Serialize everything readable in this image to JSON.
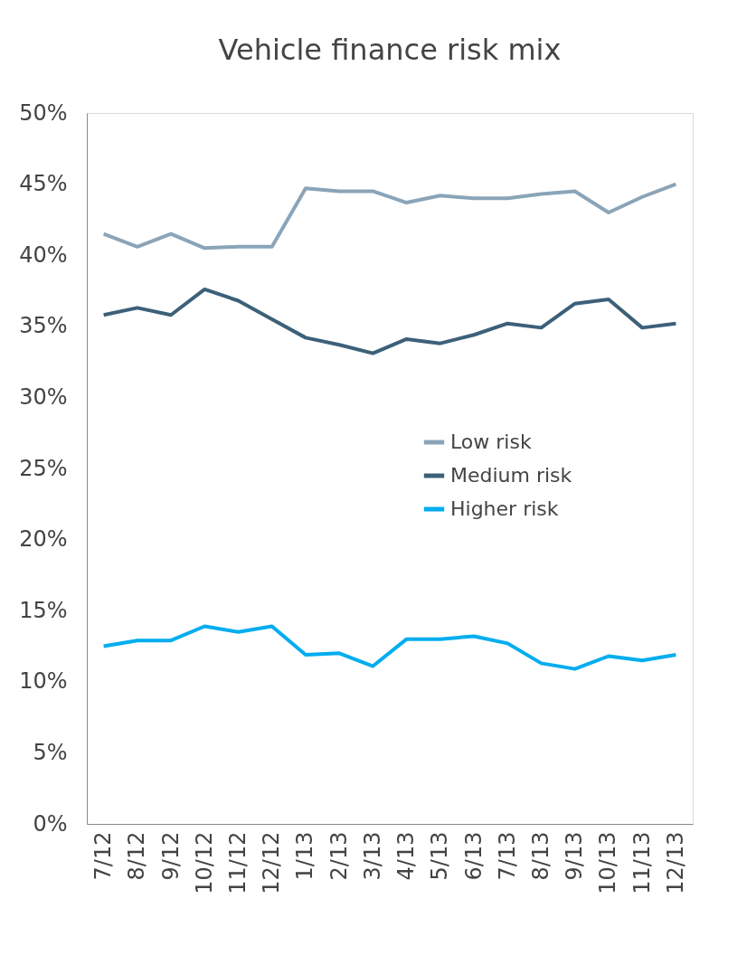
{
  "chart_data": {
    "type": "line",
    "title": "Vehicle finance risk mix",
    "categories": [
      "7/12",
      "8/12",
      "9/12",
      "10/12",
      "11/12",
      "12/12",
      "1/13",
      "2/13",
      "3/13",
      "4/13",
      "5/13",
      "6/13",
      "7/13",
      "8/13",
      "9/13",
      "10/13",
      "11/13",
      "12/13"
    ],
    "series": [
      {
        "name": "Low risk",
        "color": "#8aa4b8",
        "values": [
          41.5,
          40.6,
          41.5,
          40.5,
          40.6,
          40.6,
          44.7,
          44.5,
          44.5,
          43.7,
          44.2,
          44.0,
          44.0,
          44.3,
          44.5,
          43.0,
          44.1,
          45.0
        ]
      },
      {
        "name": "Medium risk",
        "color": "#3d6079",
        "values": [
          35.8,
          36.3,
          35.8,
          37.6,
          36.8,
          35.5,
          34.2,
          33.7,
          33.1,
          34.1,
          33.8,
          34.4,
          35.2,
          34.9,
          36.6,
          36.9,
          34.9,
          35.2
        ]
      },
      {
        "name": "Higher risk",
        "color": "#00adef",
        "values": [
          12.5,
          12.9,
          12.9,
          13.9,
          13.5,
          13.9,
          11.9,
          12.0,
          11.1,
          13.0,
          13.0,
          13.2,
          12.7,
          11.3,
          10.9,
          11.8,
          11.5,
          11.9
        ]
      }
    ],
    "ylim": [
      0,
      50
    ],
    "yticks": [
      {
        "value": 0,
        "label": "0%"
      },
      {
        "value": 5,
        "label": "5%"
      },
      {
        "value": 10,
        "label": "10%"
      },
      {
        "value": 15,
        "label": "15%"
      },
      {
        "value": 20,
        "label": "20%"
      },
      {
        "value": 25,
        "label": "25%"
      },
      {
        "value": 30,
        "label": "30%"
      },
      {
        "value": 35,
        "label": "35%"
      },
      {
        "value": 40,
        "label": "40%"
      },
      {
        "value": 45,
        "label": "45%"
      },
      {
        "value": 50,
        "label": "50%"
      }
    ],
    "grid": false,
    "legend": "right",
    "marker": "none",
    "line_style": "solid"
  }
}
